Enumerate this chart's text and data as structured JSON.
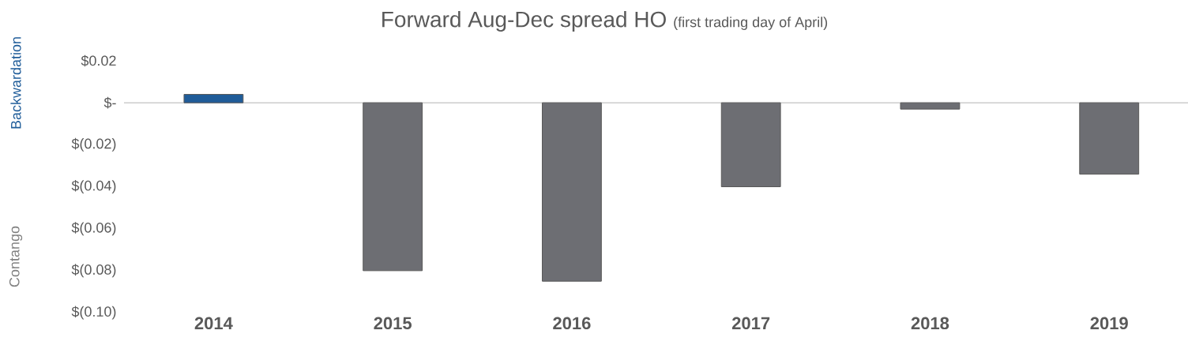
{
  "chart_data": {
    "type": "bar",
    "title": "Forward Aug-Dec spread HO",
    "subtitle": "(first trading day of April)",
    "categories": [
      "2014",
      "2015",
      "2016",
      "2017",
      "2018",
      "2019"
    ],
    "values": [
      0.004,
      -0.08,
      -0.085,
      -0.04,
      -0.003,
      -0.034
    ],
    "colors": [
      "#1f5c99",
      "#6d6e73",
      "#6d6e73",
      "#6d6e73",
      "#6d6e73",
      "#6d6e73"
    ],
    "ylim": [
      -0.1,
      0.02
    ],
    "yticks": [
      {
        "value": 0.02,
        "label": "$0.02"
      },
      {
        "value": 0,
        "label": "$-"
      },
      {
        "value": -0.02,
        "label": "$(0.02)"
      },
      {
        "value": -0.04,
        "label": "$(0.04)"
      },
      {
        "value": -0.06,
        "label": "$(0.06)"
      },
      {
        "value": -0.08,
        "label": "$(0.08)"
      },
      {
        "value": -0.1,
        "label": "$(0.10)"
      }
    ],
    "annotations": [
      "Backwardation",
      "Contango"
    ]
  }
}
